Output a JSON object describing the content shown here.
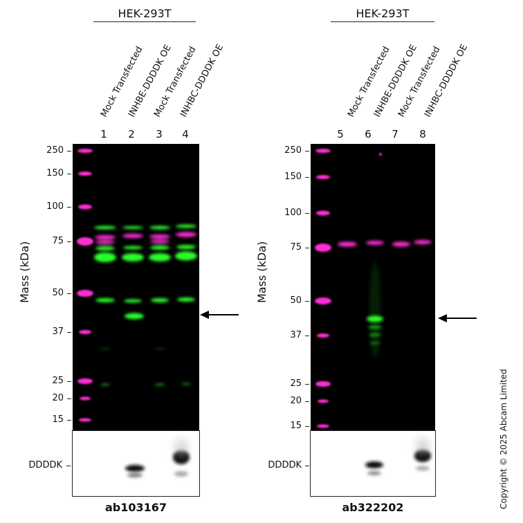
{
  "panels": [
    {
      "header": "HEK-293T",
      "lanes": [
        {
          "number": "1",
          "label": "Mock Transfected"
        },
        {
          "number": "2",
          "label": "INHBE-DDDDK OE"
        },
        {
          "number": "3",
          "label": "Mock Transfected"
        },
        {
          "number": "4",
          "label": "INHBC-DDDDK OE"
        }
      ],
      "y_axis_label": "Mass (kDa)",
      "markers": [
        "250",
        "150",
        "100",
        "75",
        "50",
        "37",
        "25",
        "20",
        "15"
      ],
      "inset_label": "DDDDK",
      "antibody": "ab103167"
    },
    {
      "header": "HEK-293T",
      "lanes": [
        {
          "number": "5",
          "label": "Mock Transfected"
        },
        {
          "number": "6",
          "label": "INHBE-DDDDK OE"
        },
        {
          "number": "7",
          "label": "Mock Transfected"
        },
        {
          "number": "8",
          "label": "INHBC-DDDDK OE"
        }
      ],
      "y_axis_label": "Mass (kDa)",
      "markers": [
        "250",
        "150",
        "100",
        "75",
        "50",
        "37",
        "25",
        "20",
        "15"
      ],
      "inset_label": "DDDDK",
      "antibody": "ab322202"
    }
  ],
  "colors": {
    "ladder": "#ff2dd6",
    "signal": "#2bff2b",
    "blot_background": "#000000"
  },
  "copyright": "Copyright © 2025 Abcam Limited"
}
